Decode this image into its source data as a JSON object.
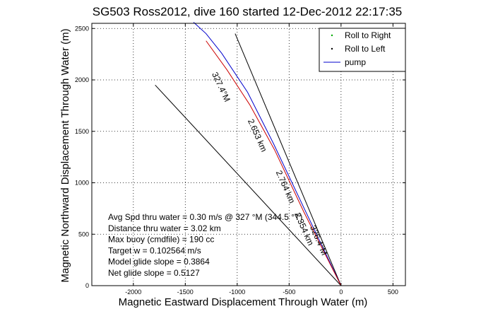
{
  "chart_data": {
    "type": "line",
    "title": "SG503 Ross2012, dive 160 started 12-Dec-2012 22:17:35",
    "xlabel": "Magnetic Eastward Displacement Through Water (m)",
    "ylabel": "Magnetic Northward Displacement Through Water (m)",
    "xlim": [
      -2400,
      620
    ],
    "ylim": [
      0,
      2550
    ],
    "xticks": [
      -2000,
      -1500,
      -1000,
      -500,
      0,
      500
    ],
    "xtick_labels": [
      "-2000",
      "-1500",
      "-1000",
      "-500",
      "0",
      "500"
    ],
    "yticks": [
      0,
      500,
      1000,
      1500,
      2000,
      2500
    ],
    "ytick_labels": [
      "0",
      "500",
      "1000",
      "1500",
      "2000",
      "2500"
    ],
    "grid": "dotted",
    "legend_position": "top-right",
    "legend": [
      {
        "label": "Roll to Right",
        "marker": "dot",
        "color": "#00aa00"
      },
      {
        "label": "Roll to Left",
        "marker": "dot",
        "color": "#000000"
      },
      {
        "label": "pump",
        "marker": "line",
        "color": "#0000cc"
      }
    ],
    "series": [
      {
        "name": "pump",
        "color": "#0000cc",
        "x": [
          0,
          -350,
          -650,
          -900,
          -1150,
          -1300,
          -1420
        ],
        "y": [
          0,
          740,
          1380,
          1880,
          2260,
          2450,
          2560
        ]
      },
      {
        "name": "",
        "color": "#cc0000",
        "x": [
          0,
          -360,
          -640,
          -880,
          -1100,
          -1300
        ],
        "y": [
          0,
          720,
          1320,
          1760,
          2100,
          2380
        ]
      }
    ],
    "reference_lines": [
      {
        "x": [
          0,
          -1790
        ],
        "y": [
          0,
          1950
        ],
        "color": "#000000"
      },
      {
        "x": [
          0,
          -1020
        ],
        "y": [
          0,
          2450
        ],
        "color": "#000000"
      }
    ],
    "line_labels": [
      {
        "text": "327.4°M",
        "x": -1180,
        "y": 1920,
        "angle": 65
      },
      {
        "text": "2.653 km",
        "x": -830,
        "y": 1450,
        "angle": 66
      },
      {
        "text": "2.764 km",
        "x": -560,
        "y": 950,
        "angle": 66
      },
      {
        "text": "2.354 km",
        "x": -380,
        "y": 540,
        "angle": 66
      },
      {
        "text": "326.4°M",
        "x": -240,
        "y": 430,
        "angle": 67
      }
    ],
    "annotations": [
      "Avg Spd thru water =  0.30 m/s @ 327    °M (344.5 °T)",
      "Distance thru water =  3.02 km",
      "Max buoy (cmdfile) = 190 cc",
      "Target w = 0.102564 m/s",
      "Model glide slope = 0.3864",
      "Net glide slope = 0.5127"
    ]
  }
}
